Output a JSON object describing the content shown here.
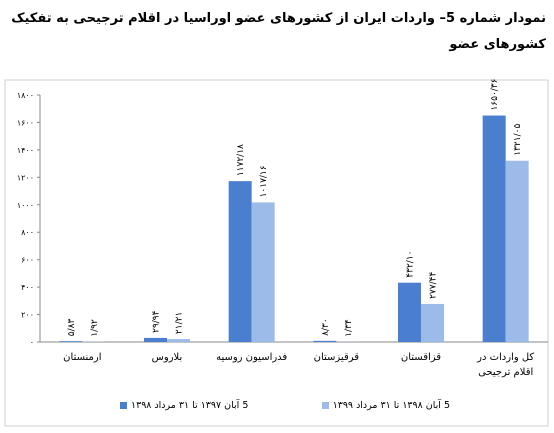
{
  "chart_data": {
    "type": "bar",
    "title": "نمودار شماره 5– واردات ایران از کشورهای عضو اوراسیا در اقلام ترجیحی به تفکیک کشورهای عضو",
    "categories": [
      "ارمنستان",
      "بلاروس",
      "فدراسیون روسیه",
      "قرقیزستان",
      "قزاقستان",
      "کل واردات در اقلام ترجیحی"
    ],
    "series": [
      {
        "name": "5 آبان ۱۳۹۷ تا ۳۱ مرداد ۱۳۹۸",
        "color": "#4a7fd0",
        "values": [
          5.83,
          29.94,
          1172.18,
          8.3,
          432.1,
          1650.36
        ],
        "value_labels": [
          "۵/۸۳",
          "۲۹/۹۴",
          "۱۱۷۲/۱۸",
          "۸/۳۰",
          "۴۳۲/۱۰",
          "۱۶۵۰/۳۶"
        ]
      },
      {
        "name": "5 آبان ۱۳۹۸ تا ۳۱ مرداد ۱۳۹۹",
        "color": "#9dbbe9",
        "values": [
          1.92,
          21.21,
          1017.16,
          1.34,
          277.44,
          1321.05
        ],
        "value_labels": [
          "۱/۹۲",
          "۲۱/۲۱",
          "۱۰۱۷/۱۶",
          "۱/۳۴",
          "۲۷۷/۴۴",
          "۱۳۲۱/۰۵"
        ]
      }
    ],
    "ylim": [
      0,
      1800
    ],
    "yticks": [
      {
        "value": 0,
        "label": "۰"
      },
      {
        "value": 200,
        "label": "۲۰۰"
      },
      {
        "value": 400,
        "label": "۴۰۰"
      },
      {
        "value": 600,
        "label": "۶۰۰"
      },
      {
        "value": 800,
        "label": "۸۰۰"
      },
      {
        "value": 1000,
        "label": "۱۰۰۰"
      },
      {
        "value": 1200,
        "label": "۱۲۰۰"
      },
      {
        "value": 1400,
        "label": "۱۴۰۰"
      },
      {
        "value": 1600,
        "label": "۱۶۰۰"
      },
      {
        "value": 1800,
        "label": "۱۸۰۰"
      }
    ],
    "grid": false
  }
}
